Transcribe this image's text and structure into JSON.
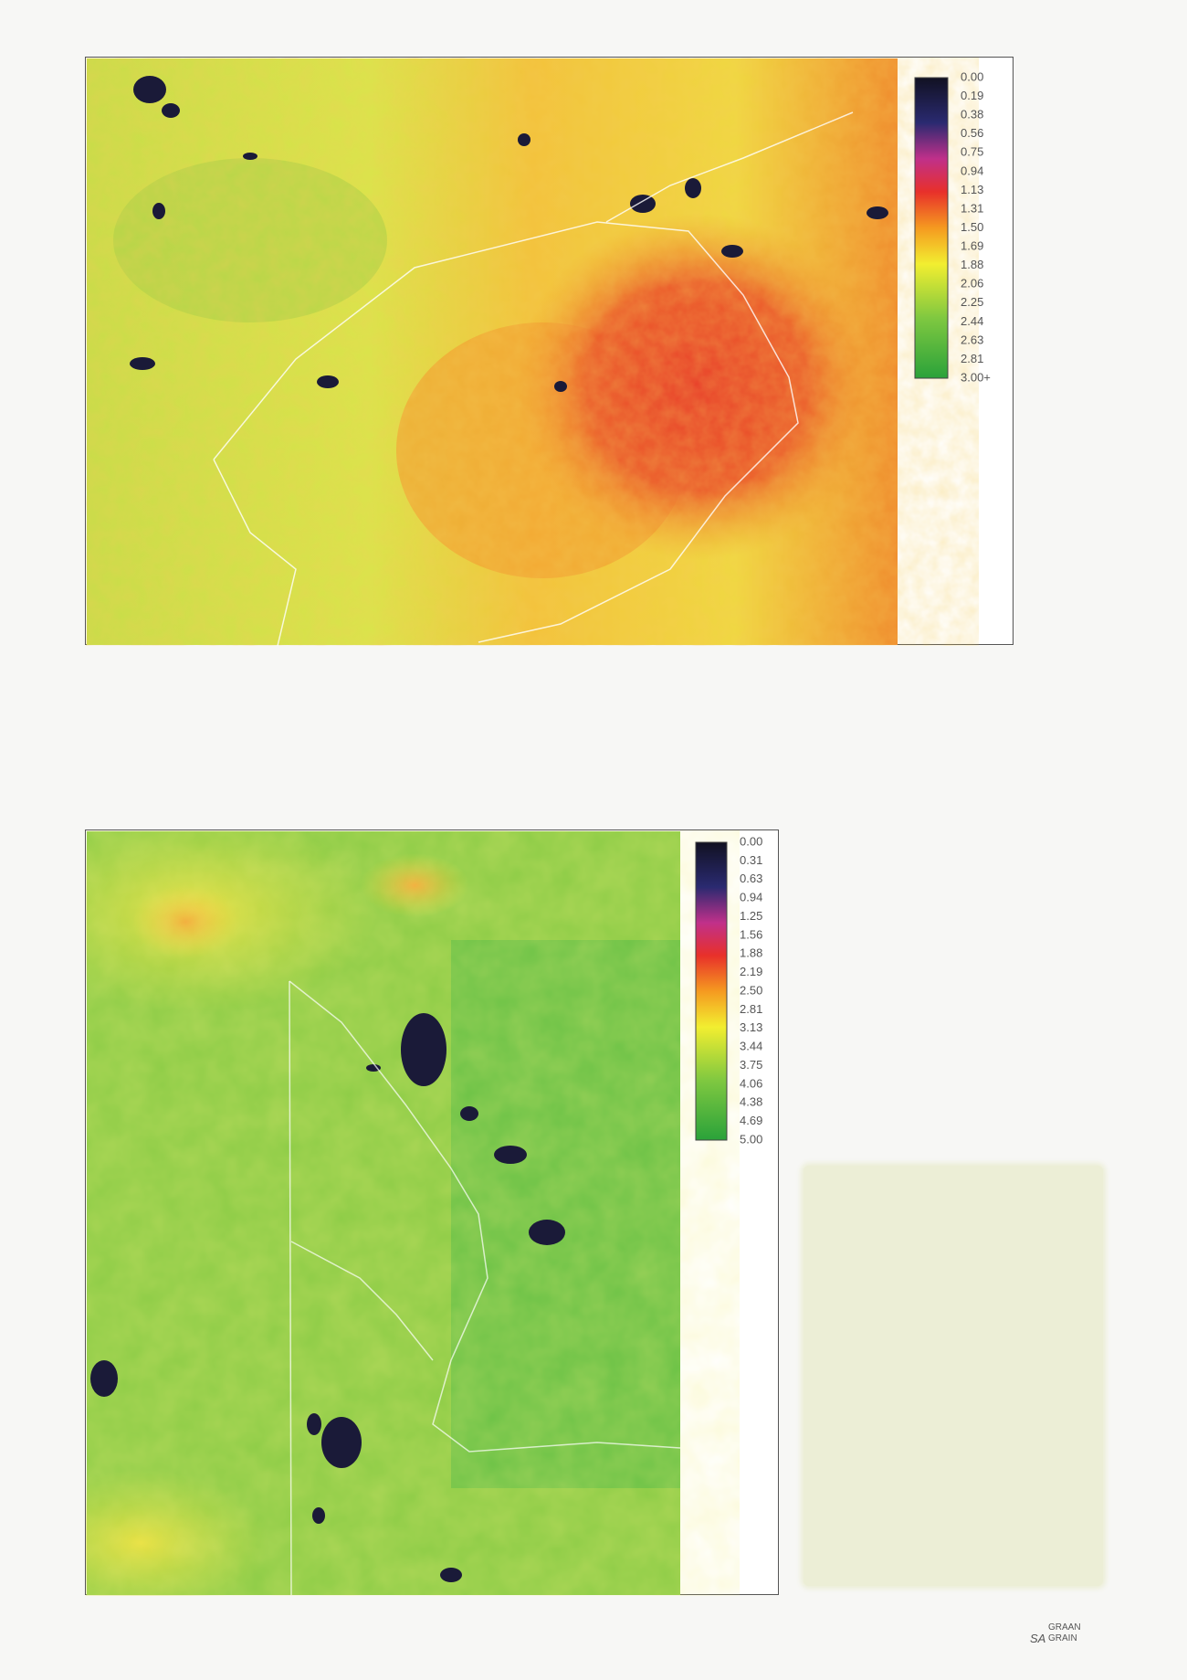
{
  "maps": [
    {
      "legend": [
        "0.00",
        "0.19",
        "0.38",
        "0.56",
        "0.75",
        "0.94",
        "1.13",
        "1.31",
        "1.50",
        "1.69",
        "1.88",
        "2.06",
        "2.25",
        "2.44",
        "2.63",
        "2.81",
        "3.00+"
      ]
    },
    {
      "legend": [
        "0.00",
        "0.31",
        "0.63",
        "0.94",
        "1.25",
        "1.56",
        "1.88",
        "2.19",
        "2.50",
        "2.81",
        "3.13",
        "3.44",
        "3.75",
        "4.06",
        "4.38",
        "4.69",
        "5.00"
      ]
    }
  ],
  "logo": {
    "top": "GRAAN",
    "left": "SA",
    "bottom": "GRAIN"
  }
}
